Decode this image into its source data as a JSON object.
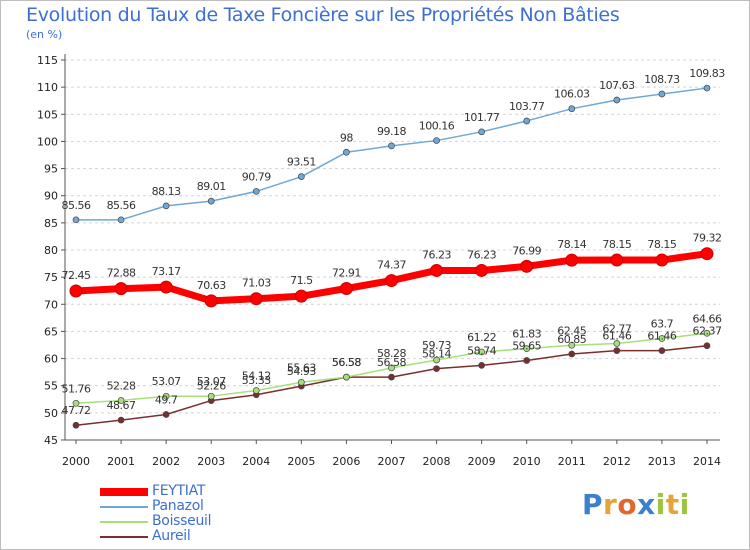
{
  "header": {
    "title": "Evolution du Taux de Taxe Foncière sur les Propriétés Non Bâties",
    "unit_label": "(en %)"
  },
  "logo": {
    "text": "Proxiti"
  },
  "colors": {
    "title": "#3d6fd3",
    "feytiat": "#ff0000",
    "panazol": "#6fa7d6",
    "boisseuil": "#a6e07a",
    "aureil": "#7a2e2e",
    "grid": "#d4d4d4"
  },
  "chart_data": {
    "type": "line",
    "title": "Evolution du Taux de Taxe Foncière sur les Propriétés Non Bâties",
    "ylabel": "(en %)",
    "xlabel": "",
    "ylim": [
      45,
      115
    ],
    "yticks": [
      45,
      50,
      55,
      60,
      65,
      70,
      75,
      80,
      85,
      90,
      95,
      100,
      105,
      110,
      115
    ],
    "grid": "horizontal dashed",
    "legend_position": "bottom-left",
    "categories": [
      "2000",
      "2001",
      "2002",
      "2003",
      "2004",
      "2005",
      "2006",
      "2007",
      "2008",
      "2009",
      "2010",
      "2011",
      "2012",
      "2013",
      "2014"
    ],
    "series": [
      {
        "name": "FEYTIAT",
        "color": "#ff0000",
        "values": [
          72.45,
          72.88,
          73.17,
          70.63,
          71.03,
          71.5,
          72.91,
          74.37,
          76.23,
          76.23,
          76.99,
          78.14,
          78.15,
          78.15,
          79.32
        ],
        "labels": [
          "72.45",
          "72.88",
          "73.17",
          "70.63",
          "71.03",
          "71.5",
          "72.91",
          "74.37",
          "76.23",
          "76.23",
          "76.99",
          "78.14",
          "78.15",
          "78.15",
          "79.32"
        ]
      },
      {
        "name": "Panazol",
        "color": "#6fa7d6",
        "values": [
          85.56,
          85.56,
          88.13,
          89.01,
          90.79,
          93.51,
          98,
          99.18,
          100.16,
          101.77,
          103.77,
          106.03,
          107.63,
          108.73,
          109.83
        ],
        "labels": [
          "85.56",
          "85.56",
          "88.13",
          "89.01",
          "90.79",
          "93.51",
          "98",
          "99.18",
          "100.16",
          "101.77",
          "103.77",
          "106.03",
          "107.63",
          "108.73",
          "109.83"
        ]
      },
      {
        "name": "Boisseuil",
        "color": "#a6e07a",
        "values": [
          51.76,
          52.28,
          53.07,
          53.07,
          54.12,
          55.63,
          56.58,
          58.28,
          59.73,
          61.22,
          61.83,
          62.45,
          62.77,
          63.7,
          64.66
        ],
        "labels": [
          "51.76",
          "52.28",
          "53.07",
          "53.07",
          "54.12",
          "55.63",
          "56.58",
          "58.28",
          "59.73",
          "61.22",
          "61.83",
          "62.45",
          "62.77",
          "63.7",
          "64.66"
        ]
      },
      {
        "name": "Aureil",
        "color": "#7a2e2e",
        "values": [
          47.72,
          48.67,
          49.7,
          52.26,
          53.33,
          54.93,
          56.58,
          56.58,
          58.14,
          58.74,
          59.65,
          60.85,
          61.46,
          61.46,
          62.37
        ],
        "labels": [
          "47.72",
          "48.67",
          "49.7",
          "52.26",
          "53.33",
          "54.93",
          "56.58",
          "56.58",
          "58.14",
          "58.74",
          "59.65",
          "60.85",
          "61.46",
          "61.46",
          "62.37"
        ]
      }
    ]
  }
}
